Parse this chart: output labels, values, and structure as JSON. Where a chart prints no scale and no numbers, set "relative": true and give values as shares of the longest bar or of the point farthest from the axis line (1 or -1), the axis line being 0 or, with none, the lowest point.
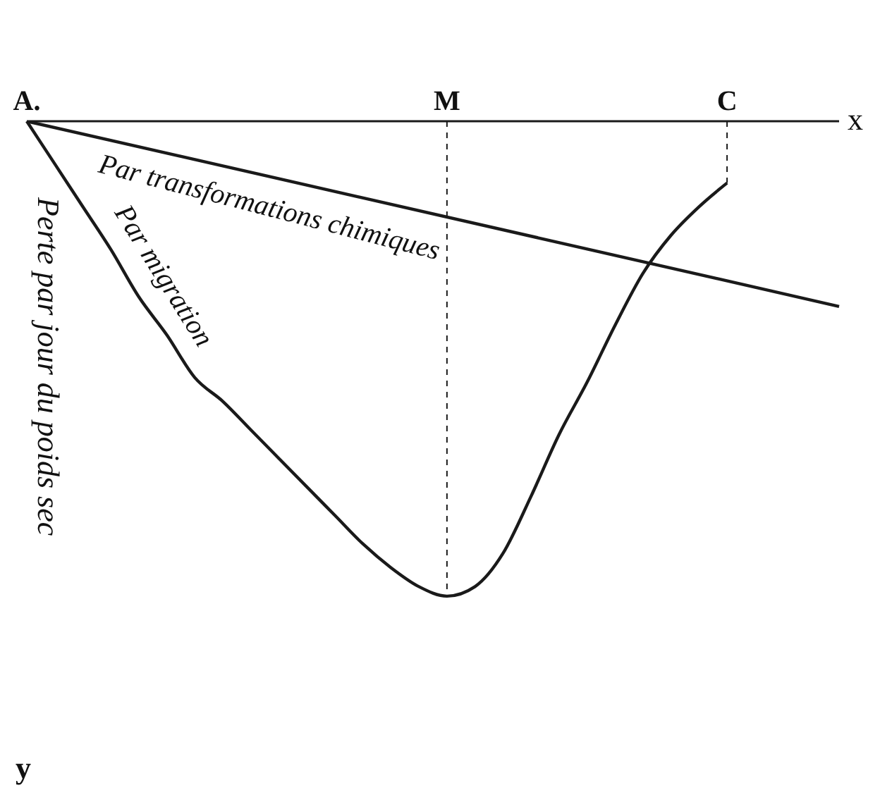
{
  "chart_data": {
    "type": "line",
    "relative": true,
    "xlabel": "x",
    "ylabel": "y",
    "categories": [
      "A.",
      null,
      null,
      null,
      null,
      null,
      null,
      null,
      null,
      null,
      null,
      null,
      null,
      null,
      null,
      "M",
      null,
      null,
      null,
      null,
      null,
      null,
      null,
      null,
      null,
      "C",
      null,
      null,
      null,
      null
    ],
    "series": [
      {
        "name": "Par transformations chimiques",
        "color": "#1a1a1a",
        "values": [
          0,
          null,
          null,
          null,
          null,
          null,
          null,
          null,
          null,
          null,
          null,
          null,
          null,
          null,
          null,
          null,
          null,
          null,
          null,
          null,
          null,
          null,
          null,
          null,
          null,
          null,
          null,
          null,
          null,
          -0.39
        ]
      },
      {
        "name": "Par migration",
        "color": "#1a1a1a",
        "values": [
          0,
          -0.09,
          -0.18,
          -0.27,
          -0.37,
          -0.45,
          -0.54,
          -0.59,
          -0.65,
          -0.71,
          -0.77,
          -0.83,
          -0.89,
          -0.94,
          -0.98,
          -1,
          -0.98,
          -0.91,
          -0.79,
          -0.66,
          -0.55,
          -0.43,
          -0.32,
          -0.24,
          -0.18,
          -0.13,
          null,
          null,
          null,
          null
        ]
      }
    ],
    "ref_lines": [
      {
        "axis": "x",
        "value": "M",
        "line_style": "dashed"
      },
      {
        "axis": "x",
        "value": "C",
        "line_style": "dashed"
      }
    ],
    "annotations": [
      "Perte par jour du poids sec"
    ],
    "legend": false,
    "grid": false,
    "marker": "none",
    "line_style": "solid"
  }
}
